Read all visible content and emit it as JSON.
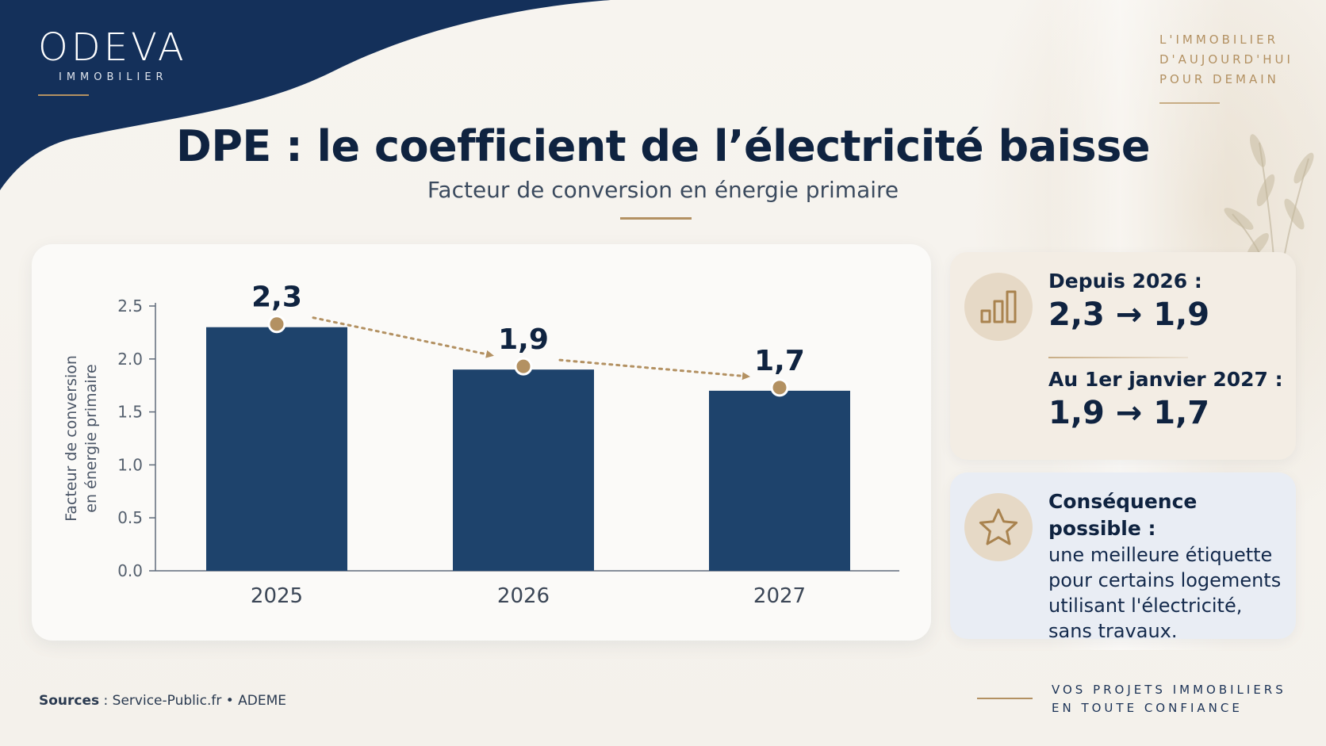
{
  "brand": {
    "name": "ODEVA",
    "sub": "IMMOBILIER",
    "tagline_lines": [
      "L'IMMOBILIER",
      "D'AUJOURD'HUI",
      "POUR DEMAIN"
    ],
    "footer_lines": [
      "VOS PROJETS IMMOBILIERS",
      "EN TOUTE CONFIANCE"
    ]
  },
  "header": {
    "title": "DPE : le coefficient de l’électricité baisse",
    "subtitle": "Facteur de conversion en énergie primaire"
  },
  "colors": {
    "navy": "#1e436c",
    "gold": "#b39162",
    "dark": "#0f2340"
  },
  "chart_data": {
    "type": "bar",
    "categories": [
      "2025",
      "2026",
      "2027"
    ],
    "values": [
      2.3,
      1.9,
      1.7
    ],
    "value_labels": [
      "2,3",
      "1,9",
      "1,7"
    ],
    "ylabel_lines": [
      "Facteur de conversion",
      "en énergie primaire"
    ],
    "ylim": [
      0,
      2.5
    ],
    "yticks": [
      "0.0",
      "0.5",
      "1.0",
      "1.5",
      "2.0",
      "2.5"
    ],
    "grid": false,
    "legend": "none",
    "trend_arrows": true
  },
  "info": {
    "card1": {
      "icon": "bar-chart-icon",
      "head1": "Depuis 2026 :",
      "value1": "2,3 → 1,9",
      "head2": "Au 1er janvier 2027 :",
      "value2": "1,9 → 1,7"
    },
    "card2": {
      "icon": "star-icon",
      "head": "Conséquence possible :",
      "lines": [
        "une meilleure étiquette",
        "pour certains logements",
        "utilisant l'électricité,",
        "sans travaux."
      ]
    }
  },
  "footer": {
    "sources_label": "Sources",
    "sources_text": " : Service-Public.fr • ADEME"
  }
}
